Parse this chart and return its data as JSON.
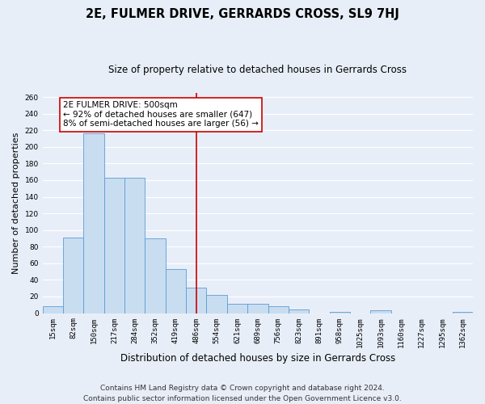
{
  "title": "2E, FULMER DRIVE, GERRARDS CROSS, SL9 7HJ",
  "subtitle": "Size of property relative to detached houses in Gerrards Cross",
  "xlabel": "Distribution of detached houses by size in Gerrards Cross",
  "ylabel": "Number of detached properties",
  "categories": [
    "15sqm",
    "82sqm",
    "150sqm",
    "217sqm",
    "284sqm",
    "352sqm",
    "419sqm",
    "486sqm",
    "554sqm",
    "621sqm",
    "689sqm",
    "756sqm",
    "823sqm",
    "891sqm",
    "958sqm",
    "1025sqm",
    "1093sqm",
    "1160sqm",
    "1227sqm",
    "1295sqm",
    "1362sqm"
  ],
  "values": [
    8,
    91,
    216,
    163,
    163,
    90,
    53,
    31,
    22,
    11,
    11,
    8,
    4,
    0,
    2,
    0,
    3,
    0,
    0,
    0,
    2
  ],
  "bar_color": "#c9ddf0",
  "bar_edge_color": "#5b9bd5",
  "background_color": "#e8eef8",
  "grid_color": "#ffffff",
  "vline_x": 7,
  "vline_color": "#cc0000",
  "annotation_text": "2E FULMER DRIVE: 500sqm\n← 92% of detached houses are smaller (647)\n8% of semi-detached houses are larger (56) →",
  "annotation_box_color": "#ffffff",
  "annotation_box_edge": "#cc0000",
  "ylim": [
    0,
    265
  ],
  "yticks": [
    0,
    20,
    40,
    60,
    80,
    100,
    120,
    140,
    160,
    180,
    200,
    220,
    240,
    260
  ],
  "footnote": "Contains HM Land Registry data © Crown copyright and database right 2024.\nContains public sector information licensed under the Open Government Licence v3.0.",
  "title_fontsize": 10.5,
  "subtitle_fontsize": 8.5,
  "xlabel_fontsize": 8.5,
  "ylabel_fontsize": 8,
  "tick_fontsize": 6.5,
  "annotation_fontsize": 7.5,
  "footnote_fontsize": 6.5
}
